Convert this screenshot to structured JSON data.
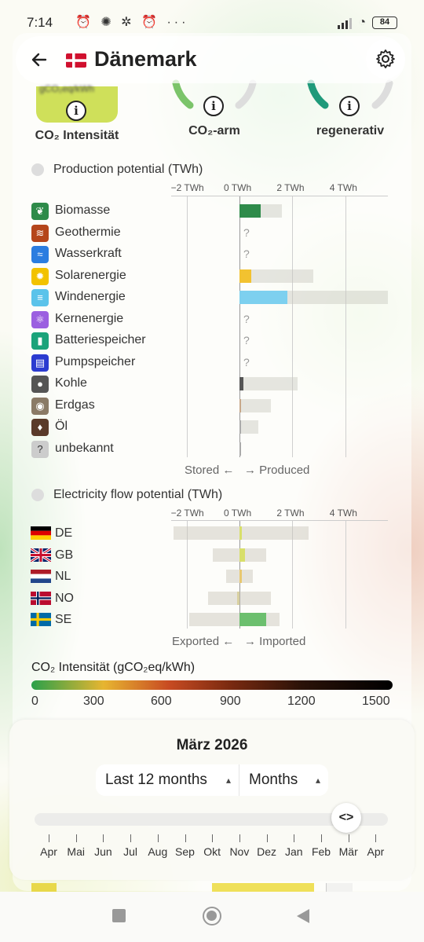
{
  "status": {
    "time": "7:14",
    "icons": "⏰ ✺ ✲ ⏰ ···",
    "battery": "84"
  },
  "header": {
    "title": "Dänemark",
    "back_icon": "back-arrow-icon",
    "settings_icon": "gear-icon"
  },
  "gauges": [
    {
      "label": "CO₂ Intensität"
    },
    {
      "label": "CO₂-arm"
    },
    {
      "label": "regenerativ"
    }
  ],
  "gauge_box_partial": "gCO₂eq/kWh",
  "production": {
    "title": "Production potential (TWh)",
    "ticks": [
      "−2 TWh",
      "0 TWh",
      "2 TWh",
      "4 TWh"
    ],
    "rows": [
      {
        "label": "Biomasse",
        "icon": "leaf-icon",
        "icon_color": "#2e8b4a"
      },
      {
        "label": "Geothermie",
        "icon": "heat-icon",
        "icon_color": "#b5451b"
      },
      {
        "label": "Wasserkraft",
        "icon": "water-icon",
        "icon_color": "#2b7de0"
      },
      {
        "label": "Solarenergie",
        "icon": "sun-icon",
        "icon_color": "#f2c200"
      },
      {
        "label": "Windenergie",
        "icon": "wind-icon",
        "icon_color": "#5bc3ea"
      },
      {
        "label": "Kernenergie",
        "icon": "atom-icon",
        "icon_color": "#9b5fe0"
      },
      {
        "label": "Batteriespeicher",
        "icon": "battery-icon",
        "icon_color": "#1aa37a"
      },
      {
        "label": "Pumpspeicher",
        "icon": "pump-icon",
        "icon_color": "#2b3bd0"
      },
      {
        "label": "Kohle",
        "icon": "coal-icon",
        "icon_color": "#555555"
      },
      {
        "label": "Erdgas",
        "icon": "gas-icon",
        "icon_color": "#8a7a66"
      },
      {
        "label": "Öl",
        "icon": "oil-icon",
        "icon_color": "#5a3a2a"
      },
      {
        "label": "unbekannt",
        "icon": "question-icon",
        "icon_color": "#999999"
      }
    ],
    "unknown_mark": "?",
    "stored": "Stored ←",
    "produced": "→ Produced"
  },
  "flow": {
    "title": "Electricity flow potential (TWh)",
    "ticks": [
      "−2 TWh",
      "0 TWh",
      "2 TWh",
      "4 TWh"
    ],
    "rows": [
      {
        "label": "DE",
        "flag": "germany-flag-icon"
      },
      {
        "label": "GB",
        "flag": "uk-flag-icon"
      },
      {
        "label": "NL",
        "flag": "netherlands-flag-icon"
      },
      {
        "label": "NO",
        "flag": "norway-flag-icon"
      },
      {
        "label": "SE",
        "flag": "sweden-flag-icon"
      }
    ],
    "exported": "Exported ←",
    "imported": "→ Imported"
  },
  "co2_scale": {
    "title": "CO₂ Intensität (gCO₂eq/kWh)",
    "ticks": [
      "0",
      "300",
      "600",
      "900",
      "1200",
      "1500"
    ]
  },
  "time_controls": {
    "month": "März 2026",
    "range": "Last 12 months",
    "granularity": "Months",
    "slider_handle": "<>",
    "months": [
      "Apr",
      "Mai",
      "Jun",
      "Jul",
      "Aug",
      "Sep",
      "Okt",
      "Nov",
      "Dez",
      "Jan",
      "Feb",
      "Mär",
      "Apr"
    ]
  },
  "chart_data": [
    {
      "type": "bar",
      "xlabel": "",
      "xlim": [
        -2.5,
        5.6
      ],
      "categories": [
        "Biomasse",
        "Geothermie",
        "Wasserkraft",
        "Solarenergie",
        "Windenergie",
        "Kernenergie",
        "Batteriespeicher",
        "Pumpspeicher",
        "Kohle",
        "Erdgas",
        "Öl",
        "unbekannt"
      ],
      "series": [
        {
          "values": [
            0.8,
            null,
            null,
            0.45,
            1.8,
            null,
            null,
            null,
            0.15,
            0.05,
            0,
            0
          ]
        },
        {
          "values": [
            1.6,
            null,
            null,
            2.8,
            5.6,
            null,
            null,
            null,
            2.2,
            1.2,
            0.7,
            0.05
          ]
        }
      ]
    },
    {
      "type": "bar",
      "xlabel": "",
      "xlim": [
        -2.5,
        5.6
      ],
      "categories": [
        "DE",
        "GB",
        "NL",
        "NO",
        "SE"
      ],
      "series": [
        {
          "values": [
            0.1,
            0.2,
            0.1,
            -0.1,
            1.0
          ]
        },
        {
          "values": [
            [
              -2.5,
              2.6
            ],
            [
              -1.0,
              1.0
            ],
            [
              -0.5,
              0.5
            ],
            [
              -1.2,
              1.2
            ],
            [
              -1.9,
              1.5
            ]
          ]
        }
      ]
    }
  ]
}
